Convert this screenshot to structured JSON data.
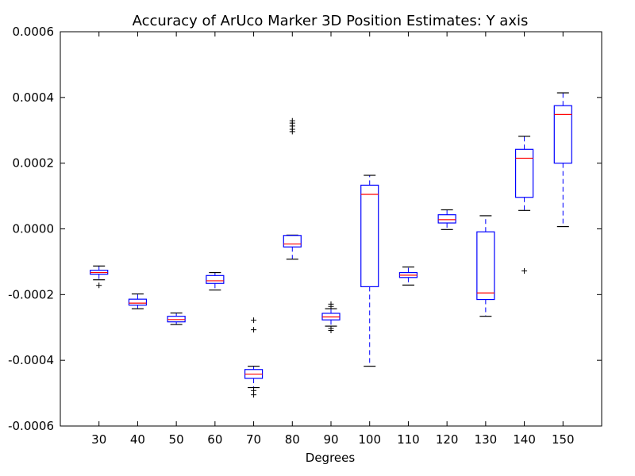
{
  "chart_data": {
    "type": "box",
    "title": "Accuracy of ArUco Marker 3D Position Estimates: Y axis",
    "xlabel": "Degrees",
    "ylabel": "",
    "ylim": [
      -0.0006,
      0.0006
    ],
    "yticks": [
      "0.0006",
      "0.0004",
      "0.0002",
      "0.0000",
      "-0.0002",
      "-0.0004",
      "-0.0006"
    ],
    "ytick_values": [
      0.0006,
      0.0004,
      0.0002,
      0.0,
      -0.0002,
      -0.0004,
      -0.0006
    ],
    "categories": [
      "30",
      "40",
      "50",
      "60",
      "70",
      "80",
      "90",
      "100",
      "110",
      "120",
      "130",
      "140",
      "150"
    ],
    "boxes": [
      {
        "label": "30",
        "whisker_low": -0.000155,
        "q1": -0.000138,
        "median": -0.000133,
        "q3": -0.000126,
        "whisker_high": -0.000113,
        "outliers": [
          -0.000172
        ]
      },
      {
        "label": "40",
        "whisker_low": -0.000243,
        "q1": -0.000232,
        "median": -0.000226,
        "q3": -0.000214,
        "whisker_high": -0.000198,
        "outliers": []
      },
      {
        "label": "50",
        "whisker_low": -0.000291,
        "q1": -0.000283,
        "median": -0.000276,
        "q3": -0.000266,
        "whisker_high": -0.000256,
        "outliers": []
      },
      {
        "label": "60",
        "whisker_low": -0.000186,
        "q1": -0.000166,
        "median": -0.000158,
        "q3": -0.000142,
        "whisker_high": -0.000133,
        "outliers": []
      },
      {
        "label": "70",
        "whisker_low": -0.000483,
        "q1": -0.000455,
        "median": -0.000442,
        "q3": -0.000428,
        "whisker_high": -0.000418,
        "outliers": [
          -0.000278,
          -0.000307,
          -0.000492,
          -0.000505
        ]
      },
      {
        "label": "80",
        "whisker_low": -9.2e-05,
        "q1": -5.5e-05,
        "median": -4.6e-05,
        "q3": -2e-05,
        "whisker_high": -1.9e-05,
        "outliers": [
          0.000296,
          0.000303,
          0.000313,
          0.000322,
          0.000329
        ]
      },
      {
        "label": "90",
        "whisker_low": -0.000296,
        "q1": -0.000277,
        "median": -0.000268,
        "q3": -0.000257,
        "whisker_high": -0.000243,
        "outliers": [
          -0.000229,
          -0.000236,
          -0.000303,
          -0.000309
        ]
      },
      {
        "label": "100",
        "whisker_low": -0.000418,
        "q1": -0.000176,
        "median": 0.000105,
        "q3": 0.000133,
        "whisker_high": 0.000163,
        "outliers": []
      },
      {
        "label": "110",
        "whisker_low": -0.000171,
        "q1": -0.000148,
        "median": -0.000141,
        "q3": -0.000133,
        "whisker_high": -0.000116,
        "outliers": []
      },
      {
        "label": "120",
        "whisker_low": -2e-06,
        "q1": 1.8e-05,
        "median": 2.8e-05,
        "q3": 4.3e-05,
        "whisker_high": 5.8e-05,
        "outliers": []
      },
      {
        "label": "130",
        "whisker_low": -0.000266,
        "q1": -0.000215,
        "median": -0.000195,
        "q3": -9e-06,
        "whisker_high": 4e-05,
        "outliers": []
      },
      {
        "label": "140",
        "whisker_low": 5.6e-05,
        "q1": 9.6e-05,
        "median": 0.000215,
        "q3": 0.000242,
        "whisker_high": 0.000282,
        "outliers": [
          -0.000128
        ]
      },
      {
        "label": "150",
        "whisker_low": 7e-06,
        "q1": 0.0002,
        "median": 0.000348,
        "q3": 0.000375,
        "whisker_high": 0.000414,
        "outliers": []
      }
    ],
    "colors": {
      "box": "#0000ff",
      "median": "#ff0000",
      "whisker": "#0000ff",
      "cap": "#000000",
      "outlier": "#000000"
    },
    "grid": false,
    "legend": "none"
  }
}
